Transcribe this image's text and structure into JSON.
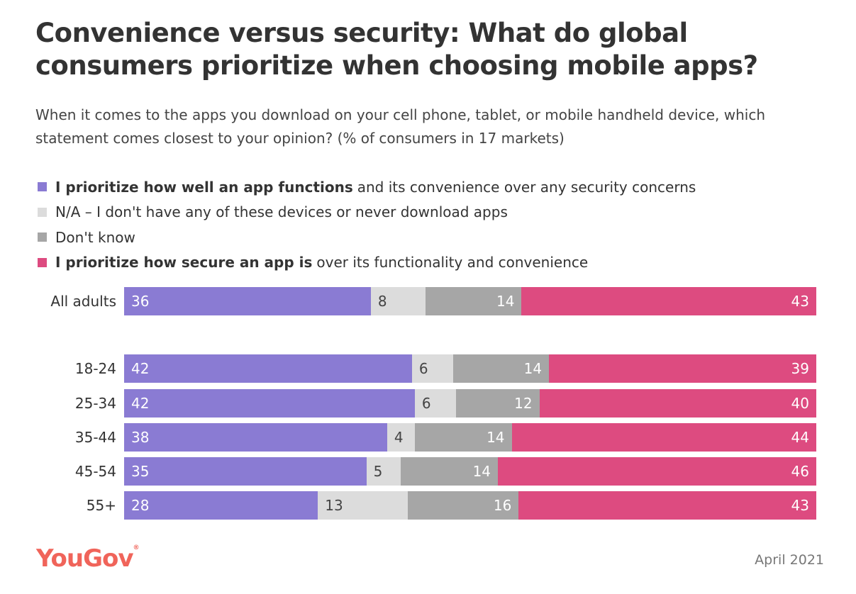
{
  "chart_data": {
    "type": "bar",
    "orientation": "horizontal-stacked-100",
    "title": "Convenience versus security: What do global consumers prioritize when choosing mobile apps?",
    "subtitle": "When it comes to the apps you download on your cell phone, tablet, or mobile handheld device, which statement comes closest to your opinion? (% of consumers in 17 markets)",
    "legend_placement": "top-left",
    "grid": false,
    "categories": [
      "All adults",
      "18-24",
      "25-34",
      "35-44",
      "45-54",
      "55+"
    ],
    "series": [
      {
        "name_bold": "I prioritize how well an app functions",
        "name_rest": "and its convenience over any security concerns",
        "color": "#8a7bd3",
        "label_color": "#ffffff",
        "values": [
          36,
          42,
          42,
          38,
          35,
          28
        ]
      },
      {
        "name_bold": "",
        "name_rest": "N/A – I don't have any of these devices or never download apps",
        "color": "#dcdcdc",
        "label_color": "#444444",
        "values": [
          8,
          6,
          6,
          4,
          5,
          13
        ]
      },
      {
        "name_bold": "",
        "name_rest": "Don't know",
        "color": "#a6a6a6",
        "label_color": "#ffffff",
        "values": [
          14,
          14,
          12,
          14,
          14,
          16
        ]
      },
      {
        "name_bold": "I prioritize how secure an app is",
        "name_rest": "over its functionality and convenience",
        "color": "#dd4b80",
        "label_color": "#ffffff",
        "values": [
          43,
          39,
          40,
          44,
          46,
          43
        ]
      }
    ]
  },
  "footer": {
    "logo": "YouGov",
    "date": "April 2021"
  }
}
